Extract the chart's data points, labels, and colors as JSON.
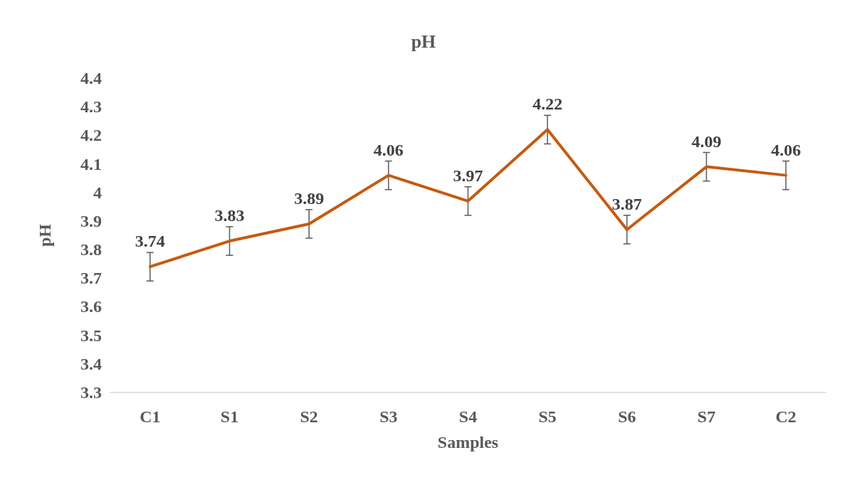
{
  "chart_data": {
    "type": "line",
    "title": "pH",
    "xlabel": "Samples",
    "ylabel": "pH",
    "categories": [
      "C1",
      "S1",
      "S2",
      "S3",
      "S4",
      "S5",
      "S6",
      "S7",
      "C2"
    ],
    "series": [
      {
        "color": "#c55a11",
        "values": [
          3.74,
          3.83,
          3.89,
          4.06,
          3.97,
          4.22,
          3.87,
          4.09,
          4.06
        ],
        "errors": [
          0.05,
          0.05,
          0.05,
          0.05,
          0.05,
          0.05,
          0.05,
          0.05,
          0.05
        ]
      }
    ],
    "ylim": [
      3.3,
      4.4
    ],
    "yticks": [
      3.3,
      3.4,
      3.5,
      3.6,
      3.7,
      3.8,
      3.9,
      4,
      4.1,
      4.2,
      4.3,
      4.4
    ],
    "grid": false,
    "data_labels": true,
    "marker": "none",
    "line_style": "solid"
  }
}
